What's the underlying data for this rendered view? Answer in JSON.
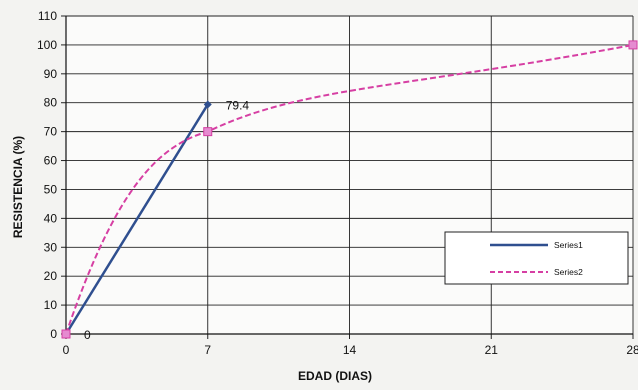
{
  "chart_data": {
    "type": "line",
    "title": "",
    "xlabel": "EDAD (DIAS)",
    "ylabel": "RESISTENCIA (%)",
    "xlim": [
      0,
      28
    ],
    "ylim": [
      0,
      110
    ],
    "x_ticks": [
      0,
      7,
      14,
      21,
      28
    ],
    "y_ticks": [
      0,
      10,
      20,
      30,
      40,
      50,
      60,
      70,
      80,
      90,
      100,
      110
    ],
    "x_tick_labels": [
      "0",
      "7",
      "14",
      "21",
      "28"
    ],
    "y_tick_labels": [
      "0",
      "10",
      "20",
      "30",
      "40",
      "50",
      "60",
      "70",
      "80",
      "90",
      "100",
      "110"
    ],
    "grid": true,
    "legend_position": "right",
    "series": [
      {
        "name": "Series1",
        "color": "#2f4f8f",
        "style": "solid",
        "marker": "diamond",
        "x": [
          0,
          7
        ],
        "y": [
          0,
          79.4
        ]
      },
      {
        "name": "Series2",
        "color": "#d63fa3",
        "style": "dashed",
        "marker": "square",
        "smooth": true,
        "x": [
          0,
          7,
          28
        ],
        "y": [
          0,
          70,
          100
        ]
      }
    ],
    "data_labels": [
      {
        "series": 0,
        "index": 0,
        "text": "0"
      },
      {
        "series": 0,
        "index": 1,
        "text": "79.4"
      }
    ]
  }
}
